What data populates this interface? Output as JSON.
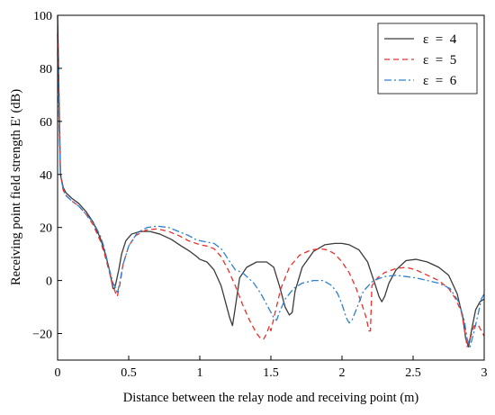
{
  "chart_data": {
    "type": "line",
    "xlabel": "Distance between the relay node and receiving point (m)",
    "ylabel": "Receiving point field strength E' (dB)",
    "xlim": [
      0,
      3
    ],
    "ylim": [
      -30,
      100
    ],
    "xticks": [
      0,
      0.5,
      1,
      1.5,
      2,
      2.5,
      3
    ],
    "xtick_labels": [
      "0",
      "0.5",
      "1",
      "1.5",
      "2",
      "2.5",
      "3"
    ],
    "yticks": [
      -20,
      0,
      20,
      40,
      60,
      80,
      100
    ],
    "ytick_labels": [
      "−20",
      "0",
      "20",
      "40",
      "60",
      "80",
      "100"
    ],
    "grid": false,
    "legend_position": "top-right",
    "series": [
      {
        "name": "ε  =  4",
        "color": "#3a3a3a",
        "dash": "solid",
        "x": [
          0,
          0.01,
          0.02,
          0.04,
          0.06,
          0.1,
          0.15,
          0.2,
          0.25,
          0.3,
          0.33,
          0.36,
          0.39,
          0.4,
          0.41,
          0.43,
          0.45,
          0.48,
          0.52,
          0.58,
          0.65,
          0.72,
          0.8,
          0.87,
          0.93,
          0.98,
          1.0,
          1.05,
          1.1,
          1.15,
          1.19,
          1.21,
          1.23,
          1.25,
          1.28,
          1.33,
          1.4,
          1.47,
          1.52,
          1.56,
          1.6,
          1.63,
          1.65,
          1.67,
          1.72,
          1.8,
          1.88,
          1.95,
          2.0,
          2.05,
          2.12,
          2.18,
          2.23,
          2.26,
          2.28,
          2.3,
          2.33,
          2.38,
          2.45,
          2.52,
          2.6,
          2.68,
          2.75,
          2.81,
          2.85,
          2.87,
          2.89,
          2.91,
          2.94,
          2.97,
          3.0
        ],
        "y": [
          100,
          70,
          40,
          35,
          33,
          31,
          29,
          26,
          22,
          16,
          11,
          5,
          -3,
          -3,
          -1,
          4,
          10,
          15,
          17.5,
          18.5,
          18.5,
          17.5,
          15.5,
          13,
          11,
          9,
          8,
          7,
          4,
          -2,
          -10,
          -14,
          -17,
          -10,
          1,
          5,
          7,
          7,
          5,
          -2,
          -10,
          -13,
          -12,
          -4,
          5,
          11,
          13.5,
          14,
          14,
          13.5,
          11.5,
          7,
          -1,
          -6,
          -8,
          -6,
          -1,
          4,
          7.5,
          8,
          7,
          5,
          2,
          -5,
          -14,
          -22,
          -25,
          -19,
          -11,
          -8,
          -7
        ]
      },
      {
        "name": "ε  =  5",
        "color": "#e8302a",
        "dash": "6,4",
        "x": [
          0,
          0.01,
          0.02,
          0.04,
          0.06,
          0.1,
          0.15,
          0.2,
          0.25,
          0.3,
          0.33,
          0.36,
          0.39,
          0.41,
          0.42,
          0.44,
          0.46,
          0.5,
          0.55,
          0.62,
          0.7,
          0.78,
          0.85,
          0.92,
          1.0,
          1.05,
          1.1,
          1.15,
          1.2,
          1.25,
          1.3,
          1.35,
          1.4,
          1.43,
          1.45,
          1.47,
          1.49,
          1.5,
          1.53,
          1.57,
          1.63,
          1.7,
          1.78,
          1.85,
          1.9,
          1.95,
          2.0,
          2.05,
          2.1,
          2.14,
          2.17,
          2.19,
          2.2,
          2.21,
          2.25,
          2.3,
          2.38,
          2.45,
          2.52,
          2.6,
          2.68,
          2.75,
          2.8,
          2.84,
          2.86,
          2.88,
          2.9,
          2.93,
          2.96,
          2.98,
          3.0
        ],
        "y": [
          93,
          65,
          40,
          34,
          32,
          30,
          28,
          25,
          21,
          15,
          10,
          4,
          -2,
          -5,
          -6,
          -1,
          6,
          13,
          17,
          19,
          19.5,
          18.5,
          17,
          15,
          13.5,
          13,
          12,
          9,
          4,
          -2,
          -9,
          -15,
          -20,
          -22,
          -22,
          -20,
          -17,
          -19,
          -12,
          -3,
          5,
          9.5,
          11.5,
          12,
          11.5,
          10,
          7,
          3,
          -3,
          -9,
          -14,
          -19,
          -19,
          -2,
          1,
          3,
          4.5,
          5,
          4,
          2,
          0,
          -3,
          -7,
          -12,
          -18,
          -25,
          -22,
          -17,
          -17,
          -19,
          -21
        ]
      },
      {
        "name": "ε  =  6",
        "color": "#2d7fd0",
        "dash": "8,3,2,3",
        "x": [
          0,
          0.01,
          0.02,
          0.04,
          0.06,
          0.1,
          0.15,
          0.2,
          0.25,
          0.3,
          0.33,
          0.36,
          0.39,
          0.41,
          0.42,
          0.44,
          0.46,
          0.5,
          0.56,
          0.63,
          0.7,
          0.78,
          0.85,
          0.92,
          0.97,
          1.0,
          1.05,
          1.1,
          1.15,
          1.2,
          1.25,
          1.3,
          1.38,
          1.43,
          1.48,
          1.52,
          1.54,
          1.56,
          1.6,
          1.66,
          1.72,
          1.8,
          1.87,
          1.93,
          1.97,
          2.0,
          2.03,
          2.05,
          2.07,
          2.1,
          2.15,
          2.22,
          2.3,
          2.38,
          2.45,
          2.52,
          2.6,
          2.68,
          2.76,
          2.82,
          2.86,
          2.88,
          2.9,
          2.93,
          2.96,
          2.98,
          3.0
        ],
        "y": [
          86,
          60,
          40,
          34,
          32,
          30,
          28,
          25,
          22,
          17,
          12,
          5,
          -1,
          -3,
          -5,
          0,
          6,
          13,
          18,
          20,
          20.5,
          20,
          18.5,
          17,
          15.5,
          15,
          14.5,
          14,
          12,
          8,
          4,
          3,
          -1,
          -5,
          -10,
          -14,
          -15,
          -12,
          -7,
          -3,
          -1,
          0,
          0,
          -2,
          -5,
          -9,
          -14,
          -16,
          -15,
          -11,
          -4,
          0,
          1.5,
          2,
          1.5,
          1,
          0,
          -1,
          -3,
          -8,
          -15,
          -22,
          -25,
          -19,
          -12,
          -7,
          -5
        ]
      }
    ]
  }
}
